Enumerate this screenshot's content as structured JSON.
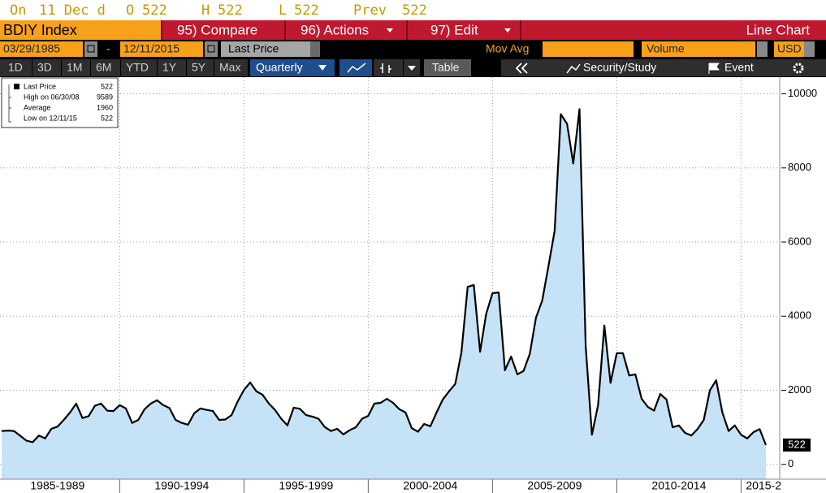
{
  "quote": {
    "status": "On",
    "date": "11 Dec d",
    "fields": [
      {
        "label": "O",
        "value": 522
      },
      {
        "label": "H",
        "value": 522
      },
      {
        "label": "L",
        "value": 522
      },
      {
        "label": "Prev",
        "value": 522
      }
    ]
  },
  "toolbar": {
    "ticker": "BDIY Index",
    "compare": "95) Compare",
    "actions": "96) Actions",
    "edit": "97) Edit",
    "chart_type": "Line Chart"
  },
  "controls": {
    "start_date": "03/29/1985",
    "separator": "-",
    "end_date": "12/11/2015",
    "field": "Last Price",
    "mov_avg": "Mov Avg",
    "volume": "Volume",
    "currency": "USD"
  },
  "periods": [
    "1D",
    "3D",
    "1M",
    "6M",
    "YTD",
    "1Y",
    "5Y",
    "Max"
  ],
  "frequency": "Quarterly",
  "table": "Table",
  "security_study": "Security/Study",
  "event": "Event",
  "legend_stats": [
    {
      "label": "High on 06/30/08",
      "value": 9589
    },
    {
      "label": "Average",
      "value": 1960
    },
    {
      "label": "Low on 12/11/15",
      "value": 522
    }
  ],
  "chart_data": {
    "type": "area",
    "x_labels": [
      "1985-1989",
      "1990-1994",
      "1995-1999",
      "2000-2004",
      "2005-2009",
      "2010-2014",
      "2015-2"
    ],
    "series": [
      {
        "name": "Last Price",
        "color": "#000000",
        "fill": "#c6e2f7",
        "values": [
          900,
          910,
          900,
          770,
          640,
          600,
          780,
          700,
          960,
          1020,
          1200,
          1400,
          1640,
          1250,
          1300,
          1580,
          1640,
          1450,
          1440,
          1600,
          1510,
          1120,
          1200,
          1490,
          1640,
          1730,
          1600,
          1520,
          1200,
          1120,
          1070,
          1380,
          1510,
          1470,
          1440,
          1200,
          1210,
          1330,
          1700,
          2010,
          2210,
          1970,
          1880,
          1640,
          1470,
          1230,
          1050,
          1530,
          1500,
          1330,
          1290,
          1230,
          1010,
          900,
          960,
          810,
          920,
          1000,
          1230,
          1310,
          1640,
          1660,
          1770,
          1660,
          1490,
          1400,
          980,
          880,
          1090,
          1030,
          1400,
          1750,
          1970,
          2170,
          3020,
          4790,
          4840,
          3040,
          4070,
          4620,
          4640,
          2540,
          2910,
          2430,
          2520,
          2980,
          3960,
          4420,
          5340,
          6300,
          9450,
          9190,
          8120,
          9589,
          3200,
          800,
          1600,
          3750,
          2200,
          3000,
          3000,
          2400,
          2430,
          1770,
          1550,
          1450,
          1900,
          1750,
          1000,
          1050,
          850,
          780,
          950,
          1200,
          2000,
          2270,
          1400,
          900,
          1050,
          800,
          700,
          870,
          950,
          522
        ]
      }
    ],
    "ylim": [
      -400,
      10450
    ],
    "yticks": [
      0,
      2000,
      4000,
      6000,
      8000,
      10000
    ],
    "grid": true
  }
}
